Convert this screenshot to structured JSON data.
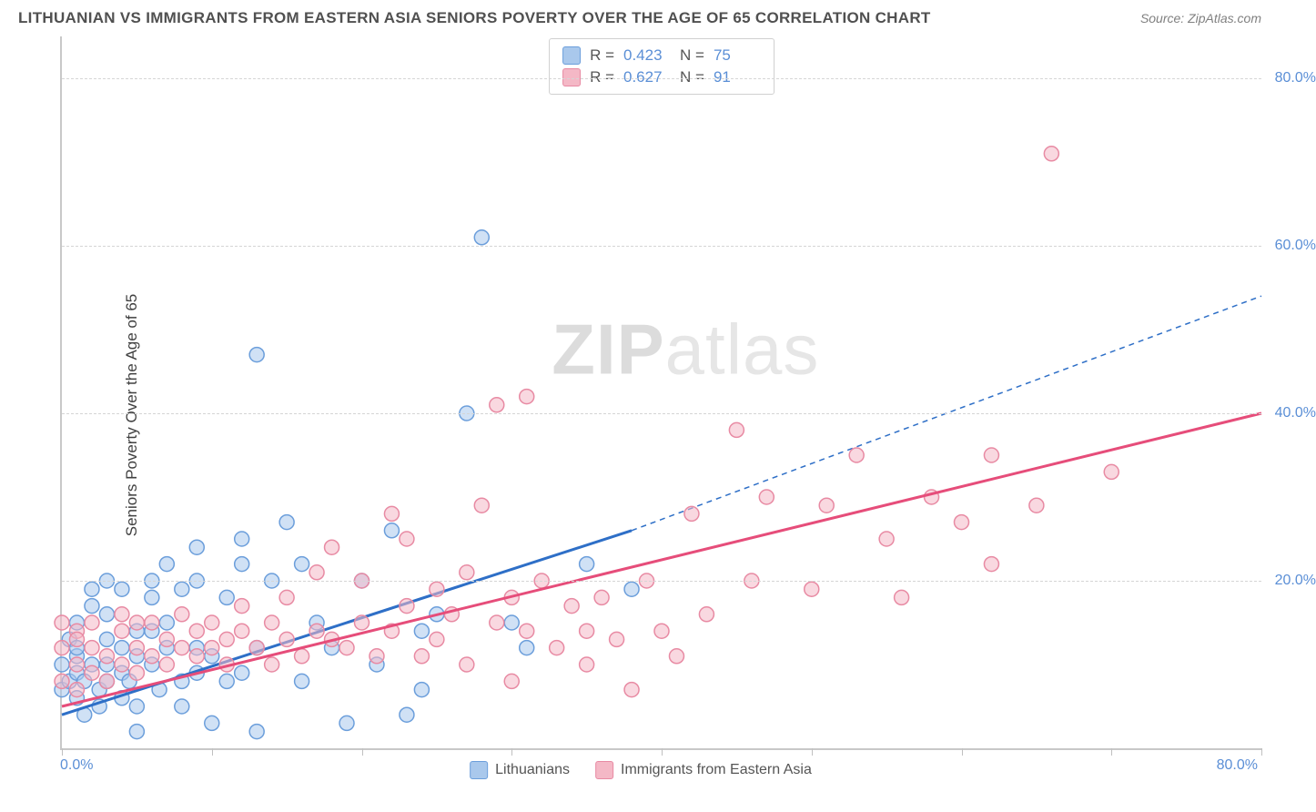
{
  "header": {
    "title": "LITHUANIAN VS IMMIGRANTS FROM EASTERN ASIA SENIORS POVERTY OVER THE AGE OF 65 CORRELATION CHART",
    "source": "Source: ZipAtlas.com"
  },
  "chart": {
    "type": "scatter",
    "ylabel": "Seniors Poverty Over the Age of 65",
    "xlim": [
      0,
      80
    ],
    "ylim": [
      0,
      85
    ],
    "yticks": [
      20,
      40,
      60,
      80
    ],
    "ytick_labels": [
      "20.0%",
      "40.0%",
      "60.0%",
      "80.0%"
    ],
    "xtick_positions": [
      0,
      10,
      20,
      30,
      40,
      50,
      60,
      70,
      80
    ],
    "xaxis_left_label": "0.0%",
    "xaxis_right_label": "80.0%",
    "background_color": "#ffffff",
    "grid_color": "#d5d5d5",
    "axis_color": "#c8c8c8",
    "tick_label_color": "#5b8fd6",
    "marker_radius": 8,
    "marker_opacity": 0.55,
    "watermark": "ZIPatlas",
    "series": [
      {
        "name": "Lithuanians",
        "color_fill": "#a9c8ec",
        "color_stroke": "#6b9edb",
        "line_color": "#2e6fc7",
        "line_width": 3,
        "dash_extension": true,
        "R": "0.423",
        "N": "75",
        "trend": {
          "x1": 0,
          "y1": 4,
          "x2": 38,
          "y2": 26,
          "ext_x2": 80,
          "ext_y2": 54
        },
        "points": [
          [
            0,
            7
          ],
          [
            0,
            10
          ],
          [
            0.5,
            8
          ],
          [
            0.5,
            13
          ],
          [
            1,
            6
          ],
          [
            1,
            9
          ],
          [
            1,
            11
          ],
          [
            1,
            15
          ],
          [
            1.5,
            4
          ],
          [
            1.5,
            8
          ],
          [
            2,
            10
          ],
          [
            2,
            17
          ],
          [
            2,
            19
          ],
          [
            2.5,
            5
          ],
          [
            2.5,
            7
          ],
          [
            3,
            13
          ],
          [
            3,
            10
          ],
          [
            3,
            16
          ],
          [
            3,
            20
          ],
          [
            4,
            6
          ],
          [
            4,
            9
          ],
          [
            4,
            12
          ],
          [
            4,
            19
          ],
          [
            4.5,
            8
          ],
          [
            5,
            11
          ],
          [
            5,
            14
          ],
          [
            5,
            2
          ],
          [
            5,
            5
          ],
          [
            6,
            10
          ],
          [
            6,
            18
          ],
          [
            6,
            20
          ],
          [
            6.5,
            7
          ],
          [
            7,
            12
          ],
          [
            7,
            22
          ],
          [
            7,
            15
          ],
          [
            8,
            8
          ],
          [
            8,
            5
          ],
          [
            8,
            19
          ],
          [
            9,
            9
          ],
          [
            9,
            12
          ],
          [
            9,
            20
          ],
          [
            9,
            24
          ],
          [
            10,
            11
          ],
          [
            10,
            3
          ],
          [
            11,
            8
          ],
          [
            11,
            18
          ],
          [
            12,
            9
          ],
          [
            12,
            22
          ],
          [
            12,
            25
          ],
          [
            13,
            12
          ],
          [
            13,
            2
          ],
          [
            13,
            47
          ],
          [
            14,
            20
          ],
          [
            15,
            27
          ],
          [
            16,
            8
          ],
          [
            16,
            22
          ],
          [
            17,
            15
          ],
          [
            18,
            12
          ],
          [
            19,
            3
          ],
          [
            20,
            20
          ],
          [
            21,
            10
          ],
          [
            22,
            26
          ],
          [
            23,
            4
          ],
          [
            24,
            7
          ],
          [
            24,
            14
          ],
          [
            25,
            16
          ],
          [
            27,
            40
          ],
          [
            28,
            61
          ],
          [
            30,
            15
          ],
          [
            31,
            12
          ],
          [
            35,
            22
          ],
          [
            38,
            19
          ],
          [
            1,
            12
          ],
          [
            3,
            8
          ],
          [
            6,
            14
          ]
        ]
      },
      {
        "name": "Immigrants from Eastern Asia",
        "color_fill": "#f4b8c6",
        "color_stroke": "#e88aa3",
        "line_color": "#e64d7a",
        "line_width": 3,
        "dash_extension": false,
        "R": "0.627",
        "N": "91",
        "trend": {
          "x1": 0,
          "y1": 5,
          "x2": 80,
          "y2": 40
        },
        "points": [
          [
            0,
            8
          ],
          [
            0,
            12
          ],
          [
            0,
            15
          ],
          [
            1,
            7
          ],
          [
            1,
            10
          ],
          [
            1,
            14
          ],
          [
            2,
            9
          ],
          [
            2,
            12
          ],
          [
            2,
            15
          ],
          [
            3,
            8
          ],
          [
            3,
            11
          ],
          [
            4,
            10
          ],
          [
            4,
            14
          ],
          [
            4,
            16
          ],
          [
            5,
            9
          ],
          [
            5,
            12
          ],
          [
            6,
            11
          ],
          [
            6,
            15
          ],
          [
            7,
            10
          ],
          [
            7,
            13
          ],
          [
            8,
            12
          ],
          [
            8,
            16
          ],
          [
            9,
            11
          ],
          [
            9,
            14
          ],
          [
            10,
            12
          ],
          [
            10,
            15
          ],
          [
            11,
            10
          ],
          [
            11,
            13
          ],
          [
            12,
            14
          ],
          [
            12,
            17
          ],
          [
            13,
            12
          ],
          [
            14,
            10
          ],
          [
            14,
            15
          ],
          [
            15,
            13
          ],
          [
            15,
            18
          ],
          [
            16,
            11
          ],
          [
            17,
            14
          ],
          [
            17,
            21
          ],
          [
            18,
            13
          ],
          [
            18,
            24
          ],
          [
            19,
            12
          ],
          [
            20,
            15
          ],
          [
            20,
            20
          ],
          [
            21,
            11
          ],
          [
            22,
            14
          ],
          [
            22,
            28
          ],
          [
            23,
            17
          ],
          [
            23,
            25
          ],
          [
            24,
            11
          ],
          [
            25,
            13
          ],
          [
            25,
            19
          ],
          [
            26,
            16
          ],
          [
            27,
            10
          ],
          [
            27,
            21
          ],
          [
            28,
            29
          ],
          [
            29,
            15
          ],
          [
            29,
            41
          ],
          [
            30,
            18
          ],
          [
            30,
            8
          ],
          [
            31,
            14
          ],
          [
            31,
            42
          ],
          [
            32,
            20
          ],
          [
            33,
            12
          ],
          [
            34,
            17
          ],
          [
            35,
            10
          ],
          [
            35,
            14
          ],
          [
            36,
            18
          ],
          [
            37,
            13
          ],
          [
            38,
            7
          ],
          [
            39,
            20
          ],
          [
            40,
            14
          ],
          [
            41,
            11
          ],
          [
            42,
            28
          ],
          [
            43,
            16
          ],
          [
            45,
            38
          ],
          [
            46,
            20
          ],
          [
            47,
            30
          ],
          [
            50,
            19
          ],
          [
            51,
            29
          ],
          [
            53,
            35
          ],
          [
            55,
            25
          ],
          [
            56,
            18
          ],
          [
            58,
            30
          ],
          [
            60,
            27
          ],
          [
            62,
            22
          ],
          [
            62,
            35
          ],
          [
            65,
            29
          ],
          [
            66,
            71
          ],
          [
            70,
            33
          ],
          [
            1,
            13
          ],
          [
            5,
            15
          ]
        ]
      }
    ],
    "stats_labels": {
      "R": "R =",
      "N": "N ="
    },
    "legend_bottom": [
      {
        "label": "Lithuanians",
        "fill": "#a9c8ec",
        "stroke": "#6b9edb"
      },
      {
        "label": "Immigrants from Eastern Asia",
        "fill": "#f4b8c6",
        "stroke": "#e88aa3"
      }
    ]
  }
}
